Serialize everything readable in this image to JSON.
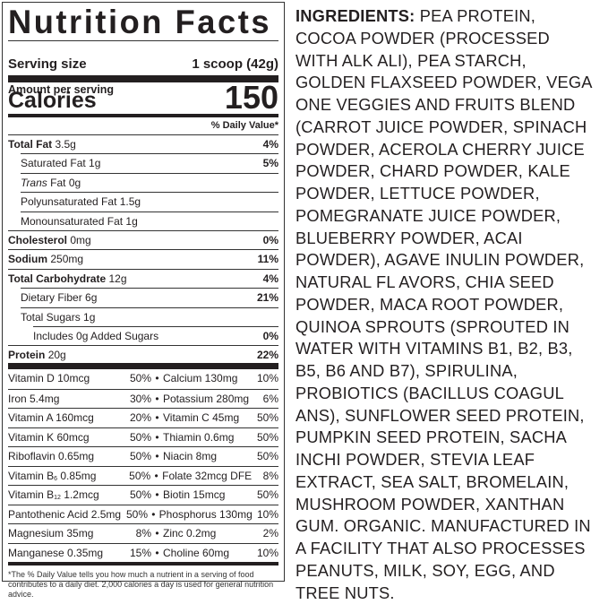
{
  "label": {
    "title": "Nutrition Facts",
    "serving_label": "Serving size",
    "serving_value": "1 scoop (42g)",
    "amount_per_serving": "Amount per serving",
    "calories_label": "Calories",
    "calories_value": "150",
    "daily_value_header": "% Daily Value*",
    "nutrients": [
      {
        "name": "Total Fat",
        "amount": "3.5g",
        "pct": "4%",
        "bold": true,
        "indent": 0
      },
      {
        "name": "Saturated Fat 1g",
        "amount": "",
        "pct": "5%",
        "bold": false,
        "indent": 1
      },
      {
        "name": "Trans",
        "amount": "Fat 0g",
        "pct": "",
        "bold": false,
        "indent": 1,
        "italic": true
      },
      {
        "name": "Polyunsaturated Fat 1.5g",
        "amount": "",
        "pct": "",
        "bold": false,
        "indent": 1
      },
      {
        "name": "Monounsaturated Fat 1g",
        "amount": "",
        "pct": "",
        "bold": false,
        "indent": 1
      },
      {
        "name": "Cholesterol",
        "amount": "0mg",
        "pct": "0%",
        "bold": true,
        "indent": 0
      },
      {
        "name": "Sodium",
        "amount": "250mg",
        "pct": "11%",
        "bold": true,
        "indent": 0
      },
      {
        "name": "Total Carbohydrate",
        "amount": "12g",
        "pct": "4%",
        "bold": true,
        "indent": 0
      },
      {
        "name": "Dietary Fiber 6g",
        "amount": "",
        "pct": "21%",
        "bold": false,
        "indent": 1
      },
      {
        "name": "Total Sugars 1g",
        "amount": "",
        "pct": "",
        "bold": false,
        "indent": 1
      },
      {
        "name": "Includes 0g Added Sugars",
        "amount": "",
        "pct": "0%",
        "bold": false,
        "indent": 2
      },
      {
        "name": "Protein",
        "amount": "20g",
        "pct": "22%",
        "bold": true,
        "indent": 0
      }
    ],
    "vitamins": [
      [
        {
          "name": "Vitamin D 10mcg",
          "pct": "50%"
        },
        {
          "name": "Calcium 130mg",
          "pct": "10%"
        }
      ],
      [
        {
          "name": "Iron 5.4mg",
          "pct": "30%"
        },
        {
          "name": "Potassium 280mg",
          "pct": "6%"
        }
      ],
      [
        {
          "name": "Vitamin A 160mcg",
          "pct": "20%"
        },
        {
          "name": "Vitamin C 45mg",
          "pct": "50%"
        }
      ],
      [
        {
          "name": "Vitamin K 60mcg",
          "pct": "50%"
        },
        {
          "name": "Thiamin 0.6mg",
          "pct": "50%"
        }
      ],
      [
        {
          "name": "Riboflavin 0.65mg",
          "pct": "50%"
        },
        {
          "name": "Niacin 8mg",
          "pct": "50%"
        }
      ],
      [
        {
          "name": "Vitamin B",
          "sub": "6",
          "post": " 0.85mg",
          "pct": "50%"
        },
        {
          "name": "Folate 32mcg DFE",
          "pct": "8%"
        }
      ],
      [
        {
          "name": "Vitamin B",
          "sub": "12",
          "post": " 1.2mcg",
          "pct": "50%"
        },
        {
          "name": "Biotin 15mcg",
          "pct": "50%"
        }
      ],
      [
        {
          "name": "Pantothenic Acid 2.5mg",
          "pct": "50%"
        },
        {
          "name": "Phosphorus 130mg",
          "pct": "10%"
        }
      ],
      [
        {
          "name": "Magnesium 35mg",
          "pct": "8%"
        },
        {
          "name": "Zinc 0.2mg",
          "pct": "2%"
        }
      ],
      [
        {
          "name": "Manganese 0.35mg",
          "pct": "15%"
        },
        {
          "name": "Choline 60mg",
          "pct": "10%"
        }
      ]
    ],
    "separator": "•",
    "footnote": "*The % Daily Value tells you how much a nutrient in a serving of food contributes to a daily diet. 2,000 calories a day is used for general nutrition advice."
  },
  "ingredients": {
    "heading": "INGREDIENTS:",
    "lines": [
      " PEA PROTEIN,",
      "COCOA POWDER (PROCESSED",
      "WITH ALK ALI), PEA STARCH,",
      "GOLDEN FLAXSEED POWDER, VEGA",
      "ONE VEGGIES AND FRUITS BLEND",
      "(CARROT JUICE POWDER, SPINACH",
      "POWDER, ACEROLA CHERRY JUICE",
      "POWDER, CHARD POWDER, KALE",
      "POWDER, LETTUCE POWDER,",
      "POMEGRANATE JUICE POWDER,",
      "BLUEBERRY POWDER, ACAI",
      "POWDER), AGAVE INULIN POWDER,",
      "NATURAL FL AVORS, CHIA SEED",
      "POWDER, MACA ROOT POWDER,",
      "QUINOA SPROUTS (SPROUTED IN",
      "WATER WITH VITAMINS B1, B2, B3,",
      "B5, B6 AND B7), SPIRULINA,",
      "PROBIOTICS (BACILLUS COAGUL",
      "ANS), SUNFLOWER SEED PROTEIN,",
      "PUMPKIN SEED PROTEIN, SACHA",
      "INCHI POWDER, STEVIA LEAF",
      "EXTRACT, SEA SALT, BROMELAIN,",
      "MUSHROOM POWDER, XANTHAN",
      "GUM. ORGANIC. MANUFACTURED IN",
      "A FACILITY THAT ALSO PROCESSES",
      "PEANUTS, MILK, SOY, EGG, AND",
      "TREE NUTS."
    ]
  }
}
